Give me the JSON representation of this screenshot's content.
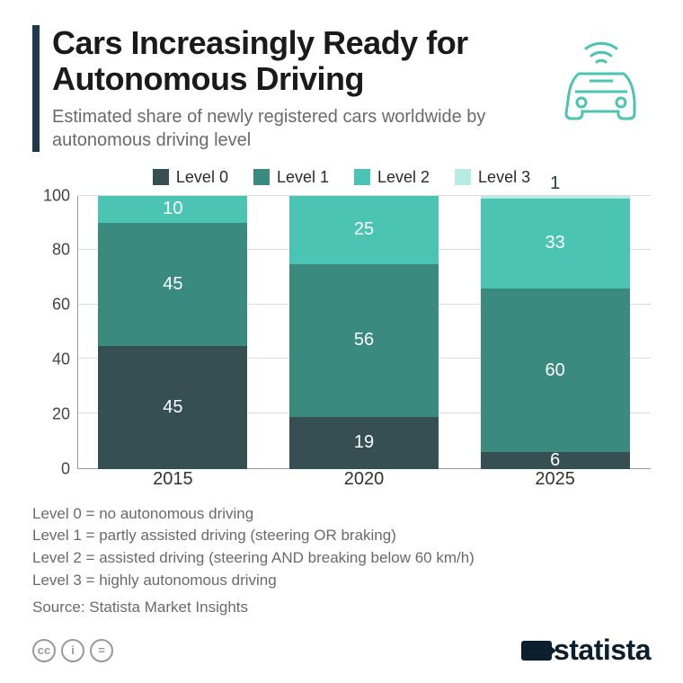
{
  "title": "Cars Increasingly Ready for Autonomous Driving",
  "subtitle": "Estimated share of newly registered cars worldwide by autonomous driving level",
  "chart": {
    "type": "stacked-bar",
    "ylim": [
      0,
      100
    ],
    "ytick_step": 20,
    "categories": [
      "2015",
      "2020",
      "2025"
    ],
    "series": [
      {
        "name": "Level 0",
        "color": "#354f52",
        "values": [
          45,
          19,
          6
        ]
      },
      {
        "name": "Level 1",
        "color": "#3b8a7f",
        "values": [
          45,
          56,
          60
        ]
      },
      {
        "name": "Level 2",
        "color": "#4bc4b3",
        "values": [
          10,
          25,
          33
        ]
      },
      {
        "name": "Level 3",
        "color": "#b7ece4",
        "values": [
          0,
          0,
          1
        ]
      }
    ],
    "background_color": "#ffffff",
    "grid_color": "#dcdcdc",
    "axis_color": "#999999",
    "label_color": "#ffffff",
    "bar_width_pct": 26,
    "axis_fontsize": 18,
    "value_label_fontsize": 20
  },
  "legend": {
    "items": [
      {
        "label": "Level 0",
        "color": "#354f52"
      },
      {
        "label": "Level 1",
        "color": "#3b8a7f"
      },
      {
        "label": "Level 2",
        "color": "#4bc4b3"
      },
      {
        "label": "Level 3",
        "color": "#b7ece4"
      }
    ]
  },
  "notes": [
    "Level 0 = no autonomous driving",
    "Level 1 = partly assisted driving (steering OR braking)",
    "Level 2 = assisted driving (steering AND breaking below 60 km/h)",
    "Level 3 = highly autonomous driving"
  ],
  "source": "Source: Statista Market Insights",
  "brand": "statista",
  "icon_color": "#4bc4b3",
  "cc_labels": [
    "cc",
    "i",
    "="
  ]
}
